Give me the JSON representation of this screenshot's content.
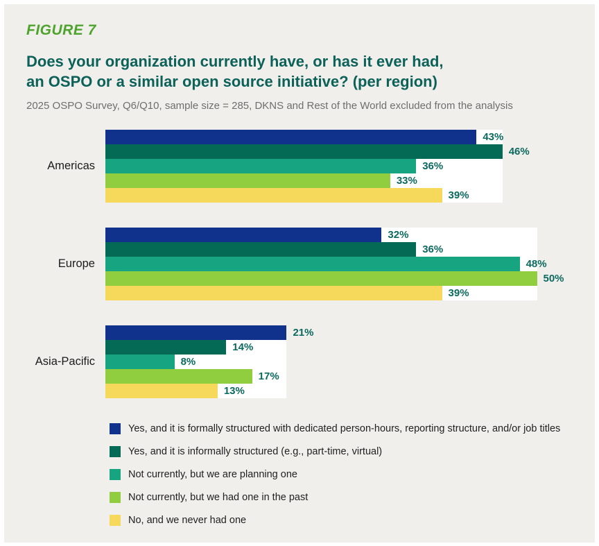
{
  "figure_label": "FIGURE 7",
  "title_line1": "Does your organization currently have, or has it ever had,",
  "title_line2": "an OSPO or a similar open source initiative? (per region)",
  "subtitle": "2025 OSPO Survey, Q6/Q10, sample size = 285, DKNS and Rest of the World excluded from the analysis",
  "colors": {
    "panel_background": "#f0efec",
    "figure_label_green": "#4da32b",
    "title_teal": "#0c6158",
    "subtitle_gray": "#6e6e6e",
    "value_label_teal": "#0b6a5e",
    "bar_backdrop_white": "#ffffff"
  },
  "chart_data": {
    "type": "bar",
    "orientation": "horizontal",
    "title": "Does your organization currently have, or has it ever had, an OSPO or a similar open source initiative? (per region)",
    "subtitle": "2025 OSPO Survey, Q6/Q10, sample size = 285, DKNS and Rest of the World excluded from the analysis",
    "categories": [
      "Americas",
      "Europe",
      "Asia-Pacific"
    ],
    "series": [
      {
        "name": "Yes, and it is formally structured with dedicated person-hours, reporting structure, and/or job titles",
        "color": "#10318c",
        "values": [
          43,
          32,
          21
        ]
      },
      {
        "name": "Yes, and it is informally structured (e.g., part-time, virtual)",
        "color": "#056a55",
        "values": [
          46,
          36,
          14
        ]
      },
      {
        "name": "Not currently, but we are planning one",
        "color": "#17a581",
        "values": [
          36,
          48,
          8
        ]
      },
      {
        "name": "Not currently, but we had one in the past",
        "color": "#91ce3f",
        "values": [
          33,
          50,
          17
        ]
      },
      {
        "name": "No, and we never had one",
        "color": "#f6d95a",
        "values": [
          39,
          39,
          13
        ]
      }
    ],
    "value_suffix": "%",
    "xlim": [
      0,
      57
    ],
    "grid": false,
    "legend_position": "bottom",
    "value_labels_shown": true
  }
}
